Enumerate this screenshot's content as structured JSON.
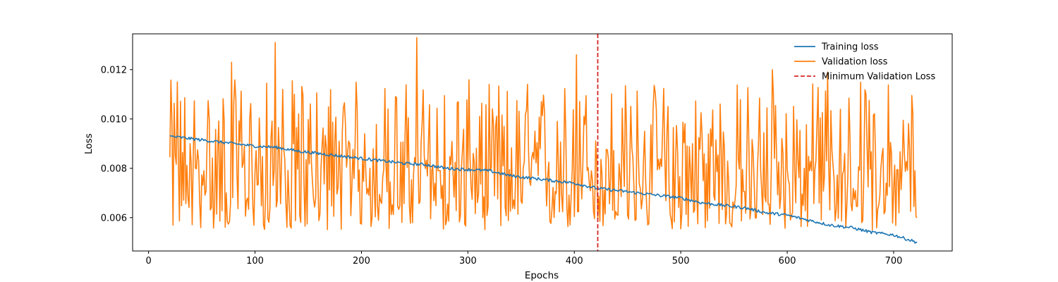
{
  "chart_data": {
    "type": "line",
    "title": "",
    "xlabel": "Epochs",
    "ylabel": "Loss",
    "xlim": [
      -15,
      755
    ],
    "ylim": [
      0.00465,
      0.01345
    ],
    "x_ticks": [
      0,
      100,
      200,
      300,
      400,
      500,
      600,
      700
    ],
    "y_ticks": [
      0.006,
      0.008,
      0.01,
      0.012
    ],
    "y_tick_labels": [
      "0.006",
      "0.008",
      "0.010",
      "0.012"
    ],
    "grid": false,
    "legend_position": "top-right",
    "x_start": 20,
    "x_end": 722,
    "series": [
      {
        "name": "Training loss",
        "color": "#1f77b4",
        "style": "solid",
        "points": [
          [
            20,
            0.0093
          ],
          [
            40,
            0.0092
          ],
          [
            60,
            0.0091
          ],
          [
            80,
            0.009
          ],
          [
            100,
            0.0089
          ],
          [
            120,
            0.00885
          ],
          [
            140,
            0.0087
          ],
          [
            160,
            0.0086
          ],
          [
            180,
            0.0085
          ],
          [
            200,
            0.0084
          ],
          [
            220,
            0.0083
          ],
          [
            240,
            0.0082
          ],
          [
            260,
            0.00815
          ],
          [
            280,
            0.008
          ],
          [
            300,
            0.00795
          ],
          [
            320,
            0.0079
          ],
          [
            340,
            0.0077
          ],
          [
            360,
            0.0076
          ],
          [
            380,
            0.0075
          ],
          [
            400,
            0.0074
          ],
          [
            420,
            0.0072
          ],
          [
            440,
            0.0071
          ],
          [
            460,
            0.007
          ],
          [
            480,
            0.0069
          ],
          [
            500,
            0.0068
          ],
          [
            520,
            0.0066
          ],
          [
            540,
            0.0065
          ],
          [
            560,
            0.0064
          ],
          [
            580,
            0.0062
          ],
          [
            600,
            0.0061
          ],
          [
            620,
            0.0059
          ],
          [
            640,
            0.0057
          ],
          [
            660,
            0.0056
          ],
          [
            680,
            0.0054
          ],
          [
            700,
            0.0053
          ],
          [
            722,
            0.005
          ]
        ],
        "noise_amplitude": 6e-05
      },
      {
        "name": "Validation loss",
        "color": "#ff7f0e",
        "style": "solid",
        "baseline": 0.0079,
        "range": [
          0.0055,
          0.0133
        ],
        "peaks": [
          [
            27,
            0.0115
          ],
          [
            78,
            0.0123
          ],
          [
            119,
            0.0131
          ],
          [
            252,
            0.0133
          ],
          [
            402,
            0.0126
          ],
          [
            586,
            0.012
          ],
          [
            638,
            0.0119
          ]
        ],
        "end_point": [
          722,
          0.006
        ]
      },
      {
        "name": "Minimum Validation Loss",
        "color": "#d62728",
        "style": "dashed",
        "x": 422
      }
    ]
  }
}
